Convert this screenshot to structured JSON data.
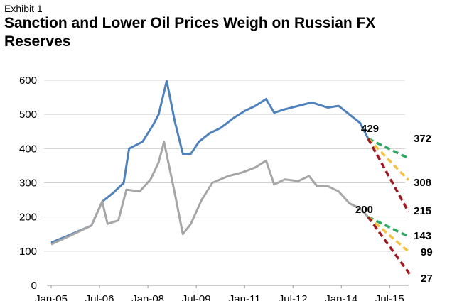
{
  "exhibit": "Exhibit 1",
  "chart_data": {
    "type": "line",
    "title": "Sanction and Lower Oil Prices Weigh on Russian FX Reserves",
    "xlabel": "",
    "ylabel": "",
    "ylim": [
      0,
      600
    ],
    "yticks": [
      0,
      100,
      200,
      300,
      400,
      500,
      600
    ],
    "xtick_labels": [
      "Jan-05",
      "Jul-06",
      "Jan-08",
      "Jul-09",
      "Jan-11",
      "Jul-12",
      "Jan-14",
      "Jul-15"
    ],
    "xtick_months": [
      0,
      18,
      36,
      54,
      72,
      90,
      108,
      126
    ],
    "x_unit": "months since Jan-05",
    "grid": true,
    "series": [
      {
        "color": "#4f81bd",
        "points": [
          [
            0,
            125
          ],
          [
            7,
            148
          ],
          [
            15,
            175
          ],
          [
            19,
            245
          ],
          [
            23,
            270
          ],
          [
            27,
            300
          ],
          [
            29,
            400
          ],
          [
            34,
            420
          ],
          [
            38,
            470
          ],
          [
            40,
            500
          ],
          [
            43,
            598
          ],
          [
            46,
            480
          ],
          [
            49,
            385
          ],
          [
            52,
            385
          ],
          [
            55,
            420
          ],
          [
            59,
            445
          ],
          [
            63,
            460
          ],
          [
            68,
            490
          ],
          [
            72,
            510
          ],
          [
            76,
            525
          ],
          [
            80,
            545
          ],
          [
            83,
            505
          ],
          [
            87,
            515
          ],
          [
            92,
            525
          ],
          [
            97,
            535
          ],
          [
            103,
            520
          ],
          [
            107,
            525
          ],
          [
            111,
            500
          ],
          [
            115,
            475
          ],
          [
            118,
            429
          ]
        ]
      },
      {
        "color": "#a6a6a6",
        "points": [
          [
            0,
            120
          ],
          [
            7,
            145
          ],
          [
            15,
            175
          ],
          [
            19,
            245
          ],
          [
            21,
            180
          ],
          [
            25,
            190
          ],
          [
            28,
            280
          ],
          [
            33,
            275
          ],
          [
            37,
            310
          ],
          [
            40,
            360
          ],
          [
            42,
            420
          ],
          [
            46,
            270
          ],
          [
            49,
            150
          ],
          [
            52,
            180
          ],
          [
            56,
            250
          ],
          [
            60,
            300
          ],
          [
            66,
            320
          ],
          [
            71,
            330
          ],
          [
            76,
            345
          ],
          [
            80,
            365
          ],
          [
            83,
            295
          ],
          [
            87,
            310
          ],
          [
            92,
            305
          ],
          [
            96,
            320
          ],
          [
            99,
            290
          ],
          [
            103,
            290
          ],
          [
            107,
            275
          ],
          [
            111,
            240
          ],
          [
            115,
            225
          ],
          [
            118,
            200
          ]
        ]
      }
    ],
    "projections": [
      {
        "color": "#2ea860",
        "from": [
          118,
          429
        ],
        "to": [
          133,
          372
        ]
      },
      {
        "color": "#f5c242",
        "from": [
          118,
          429
        ],
        "to": [
          133,
          308
        ]
      },
      {
        "color": "#a01a22",
        "from": [
          118,
          429
        ],
        "to": [
          133,
          215
        ]
      },
      {
        "color": "#2ea860",
        "from": [
          118,
          200
        ],
        "to": [
          133,
          143
        ]
      },
      {
        "color": "#f5c242",
        "from": [
          118,
          200
        ],
        "to": [
          133,
          99
        ]
      },
      {
        "color": "#a01a22",
        "from": [
          118,
          200
        ],
        "to": [
          134,
          27
        ]
      }
    ],
    "labels": [
      "429",
      "372",
      "308",
      "215",
      "200",
      "143",
      "99",
      "27"
    ]
  }
}
